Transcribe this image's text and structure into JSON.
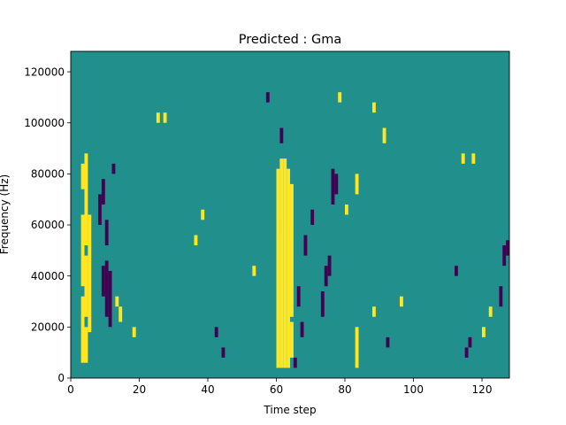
{
  "chart_data": {
    "type": "heatmap",
    "title": "Predicted : Gma",
    "xlabel": "Time step",
    "ylabel": "Frequency (Hz)",
    "xlim": [
      0,
      128
    ],
    "ylim": [
      0,
      128000
    ],
    "x_ticks": [
      0,
      20,
      40,
      60,
      80,
      100,
      120
    ],
    "y_ticks": [
      0,
      20000,
      40000,
      60000,
      80000,
      100000,
      120000
    ],
    "x_tick_labels": [
      "0",
      "20",
      "40",
      "60",
      "80",
      "100",
      "120"
    ],
    "y_tick_labels": [
      "0",
      "20000",
      "40000",
      "60000",
      "80000",
      "100000",
      "120000"
    ],
    "bin_height_hz": 4000,
    "colors": {
      "background": "#21908d",
      "high": "#fde725",
      "low": "#440154"
    },
    "high_cells": [
      [
        3,
        6000,
        32000
      ],
      [
        3,
        36000,
        64000
      ],
      [
        3,
        74000,
        84000
      ],
      [
        4,
        6000,
        20000
      ],
      [
        4,
        24000,
        48000
      ],
      [
        4,
        52000,
        88000
      ],
      [
        5,
        18000,
        64000
      ],
      [
        60,
        4000,
        82000
      ],
      [
        61,
        4000,
        86000
      ],
      [
        62,
        4000,
        86000
      ],
      [
        63,
        4000,
        82000
      ],
      [
        64,
        8000,
        22000
      ],
      [
        64,
        24000,
        76000
      ],
      [
        25,
        100000,
        104000
      ],
      [
        27,
        100000,
        104000
      ],
      [
        83,
        4000,
        20000
      ],
      [
        83,
        72000,
        80000
      ],
      [
        88,
        24000,
        28000
      ],
      [
        88,
        104000,
        108000
      ],
      [
        122,
        24000,
        28000
      ],
      [
        120,
        16000,
        20000
      ],
      [
        114,
        84000,
        88000
      ],
      [
        117,
        84000,
        88000
      ],
      [
        36,
        52000,
        56000
      ],
      [
        38,
        62000,
        66000
      ],
      [
        13,
        28000,
        32000
      ],
      [
        14,
        22000,
        28000
      ],
      [
        91,
        92000,
        98000
      ],
      [
        96,
        28000,
        32000
      ],
      [
        78,
        108000,
        112000
      ],
      [
        80,
        64000,
        68000
      ],
      [
        53,
        40000,
        44000
      ],
      [
        18,
        16000,
        20000
      ]
    ],
    "low_cells": [
      [
        9,
        32000,
        44000
      ],
      [
        10,
        24000,
        46000
      ],
      [
        11,
        20000,
        42000
      ],
      [
        8,
        60000,
        72000
      ],
      [
        9,
        68000,
        78000
      ],
      [
        10,
        52000,
        62000
      ],
      [
        76,
        68000,
        82000
      ],
      [
        77,
        72000,
        80000
      ],
      [
        75,
        40000,
        48000
      ],
      [
        67,
        16000,
        22000
      ],
      [
        68,
        48000,
        56000
      ],
      [
        70,
        60000,
        66000
      ],
      [
        73,
        24000,
        34000
      ],
      [
        74,
        36000,
        44000
      ],
      [
        61,
        92000,
        98000
      ],
      [
        60,
        56000,
        62000
      ],
      [
        65,
        4000,
        8000
      ],
      [
        66,
        28000,
        36000
      ],
      [
        125,
        28000,
        36000
      ],
      [
        126,
        44000,
        52000
      ],
      [
        127,
        48000,
        54000
      ],
      [
        12,
        80000,
        84000
      ],
      [
        112,
        40000,
        44000
      ],
      [
        57,
        108000,
        112000
      ],
      [
        92,
        12000,
        16000
      ],
      [
        44,
        8000,
        12000
      ],
      [
        42,
        16000,
        20000
      ],
      [
        115,
        8000,
        12000
      ],
      [
        116,
        12000,
        16000
      ]
    ]
  }
}
